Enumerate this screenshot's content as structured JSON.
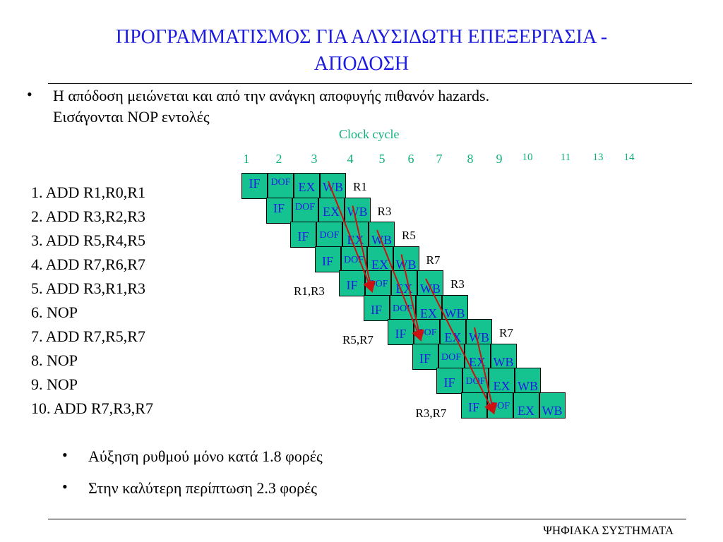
{
  "title_line1": "ΠΡΟΓΡΑΜΜΑΤΙΣΜΟΣ ΓΙΑ ΑΛΥΣΙΔΩΤΗ ΕΠΕΞΕΡΓΑΣΙΑ -",
  "title_line2": "ΑΠΟΔΟΣΗ",
  "bullet_top_line1": "Η απόδοση μειώνεται και από την ανάγκη αποφυγής πιθανόν hazards.",
  "bullet_top_line2": "Εισάγονται NOP εντολές",
  "clock_cycle_label": "Clock cycle",
  "cycle_numbers": [
    "1",
    "2",
    "3",
    "4",
    "5",
    "6",
    "7",
    "8",
    "9",
    "10",
    "11",
    "13",
    "14"
  ],
  "instructions": [
    "1. ADD R1,R0,R1",
    "2. ADD R3,R2,R3",
    "3. ADD R5,R4,R5",
    "4. ADD R7,R6,R7",
    "5. ADD R3,R1,R3",
    "6. NOP",
    "7. ADD R7,R5,R7",
    "8. NOP",
    "9. NOP",
    "10. ADD R7,R3,R7"
  ],
  "pipeline_rows": [
    {
      "stages": [
        "IF",
        "DOF",
        "EX",
        "WB"
      ],
      "reg_after": "R1",
      "reg_before": ""
    },
    {
      "stages": [
        "IF",
        "DOF",
        "EX",
        "WB"
      ],
      "reg_after": "R3",
      "reg_before": ""
    },
    {
      "stages": [
        "IF",
        "DOF",
        "EX",
        "WB"
      ],
      "reg_after": "R5",
      "reg_before": ""
    },
    {
      "stages": [
        "IF",
        "DOF",
        "EX",
        "WB"
      ],
      "reg_after": "R7",
      "reg_before": ""
    },
    {
      "stages": [
        "IF",
        "DOF",
        "EX",
        "WB"
      ],
      "reg_after": "R3",
      "reg_before": "R1,R3"
    },
    {
      "stages": [
        "IF",
        "DOF",
        "EX",
        "WB"
      ],
      "reg_after": "",
      "reg_before": ""
    },
    {
      "stages": [
        "IF",
        "DOF",
        "EX",
        "WB"
      ],
      "reg_after": "R7",
      "reg_before": "R5,R7"
    },
    {
      "stages": [
        "IF",
        "DOF",
        "EX",
        "WB"
      ],
      "reg_after": "",
      "reg_before": ""
    },
    {
      "stages": [
        "IF",
        "DOF",
        "EX",
        "WB"
      ],
      "reg_after": "",
      "reg_before": ""
    },
    {
      "stages": [
        "IF",
        "DOF",
        "EX",
        "WB"
      ],
      "reg_after": "",
      "reg_before": "R3,R7"
    }
  ],
  "bullets_bottom": [
    "Αύξηση ρυθμού μόνο κατά 1.8 φορές",
    "Στην καλύτερη περίπτωση 2.3 φορές"
  ],
  "footer": "ΨΗΦΙΑΚΑ ΣΥΣΤΗΜΑΤΑ",
  "colors": {
    "title": "#1c1ce0",
    "cell_fill": "#14c390",
    "cycle_text": "#10b07e",
    "arrow": "#cc1111"
  }
}
